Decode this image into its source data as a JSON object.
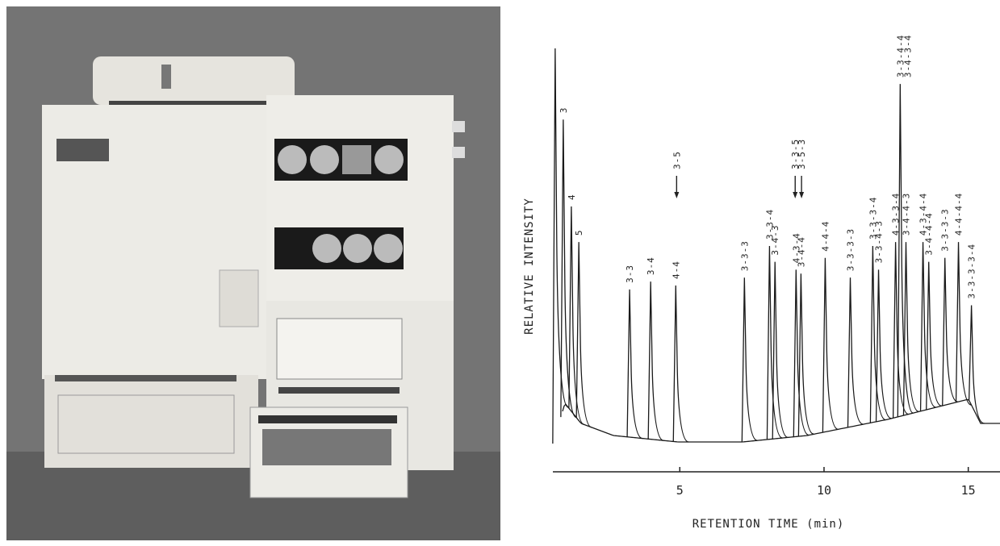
{
  "chart_data": {
    "type": "chromatogram",
    "xlabel": "RETENTION TIME (min)",
    "ylabel": "RELATIVE INTENSITY",
    "xlim": [
      0.6,
      16.1
    ],
    "xticks": [
      5,
      10,
      15
    ],
    "ylim": [
      0,
      100
    ],
    "color": "#1a1a1a",
    "peaks": [
      {
        "x": 0.68,
        "height": 100
      },
      {
        "labels": [
          "3"
        ],
        "x": 0.96,
        "height": 82
      },
      {
        "labels": [
          "4"
        ],
        "x": 1.24,
        "height": 60
      },
      {
        "labels": [
          "5"
        ],
        "x": 1.5,
        "height": 51
      },
      {
        "labels": [
          "3-3"
        ],
        "x": 3.26,
        "height": 39
      },
      {
        "labels": [
          "3-4"
        ],
        "x": 3.99,
        "height": 41
      },
      {
        "labels": [
          "4-4"
        ],
        "x": 4.86,
        "height": 40
      },
      {
        "labels": [
          "3-3-3"
        ],
        "x": 7.24,
        "height": 42
      },
      {
        "labels": [
          "3-3-4"
        ],
        "x": 8.11,
        "height": 50
      },
      {
        "labels": [
          "3-4-3"
        ],
        "x": 8.3,
        "height": 46
      },
      {
        "labels": [
          "4-3-4"
        ],
        "x": 9.03,
        "height": 44
      },
      {
        "labels": [
          "3-4-4"
        ],
        "x": 9.2,
        "height": 43
      },
      {
        "labels": [
          "4-4-4"
        ],
        "x": 10.04,
        "height": 47
      },
      {
        "labels": [
          "3-3-3-3"
        ],
        "x": 10.91,
        "height": 42
      },
      {
        "labels": [
          "3-3-3-4"
        ],
        "x": 11.69,
        "height": 50
      },
      {
        "labels": [
          "3-3-4-3"
        ],
        "x": 11.89,
        "height": 44
      },
      {
        "labels": [
          "4-3-3-4"
        ],
        "x": 12.48,
        "height": 51
      },
      {
        "labels": [
          "3-3-4-4",
          "3-4-3-4"
        ],
        "x": 12.64,
        "height": 91
      },
      {
        "labels": [
          "3-4-4-3"
        ],
        "x": 12.84,
        "height": 51
      },
      {
        "labels": [
          "4-3-4-4"
        ],
        "x": 13.43,
        "height": 51
      },
      {
        "labels": [
          "3-4-4-4"
        ],
        "x": 13.63,
        "height": 46
      },
      {
        "labels": [
          "3-3-3-3"
        ],
        "x": 14.19,
        "height": 47
      },
      {
        "labels": [
          "4-4-4-4"
        ],
        "x": 14.66,
        "height": 51
      },
      {
        "labels": [
          "3-3-3-3-4"
        ],
        "x": 15.11,
        "height": 35
      }
    ],
    "arrows": [
      {
        "label": "3-5",
        "x": 4.89
      },
      {
        "label": "3-3-5",
        "x": 9.0
      },
      {
        "label": "3-5-3",
        "x": 9.22
      }
    ]
  }
}
